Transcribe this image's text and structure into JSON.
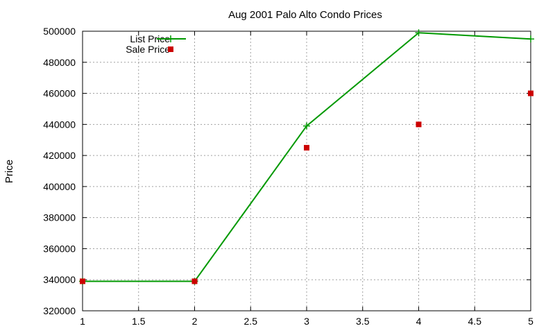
{
  "chart_data": {
    "type": "line",
    "title": "Aug 2001 Palo Alto Condo Prices",
    "xlabel": "",
    "ylabel": "Price",
    "xlim": [
      1,
      5
    ],
    "ylim": [
      320000,
      500000
    ],
    "xticks": [
      "1",
      "1.5",
      "2",
      "2.5",
      "3",
      "3.5",
      "4",
      "4.5",
      "5"
    ],
    "yticks": [
      "320000",
      "340000",
      "360000",
      "380000",
      "400000",
      "420000",
      "440000",
      "460000",
      "480000",
      "500000"
    ],
    "grid": true,
    "legend_position": "top-left",
    "series": [
      {
        "name": "List Price",
        "kind": "line",
        "marker": "plus",
        "color": "#009900",
        "x": [
          1,
          2,
          3,
          4,
          5
        ],
        "y": [
          339000,
          339000,
          439000,
          499000,
          495000
        ]
      },
      {
        "name": "Sale Price",
        "kind": "scatter",
        "marker": "square",
        "color": "#cc0000",
        "x": [
          1,
          2,
          3,
          4,
          5
        ],
        "y": [
          339000,
          339000,
          425000,
          440000,
          460000
        ]
      }
    ]
  }
}
